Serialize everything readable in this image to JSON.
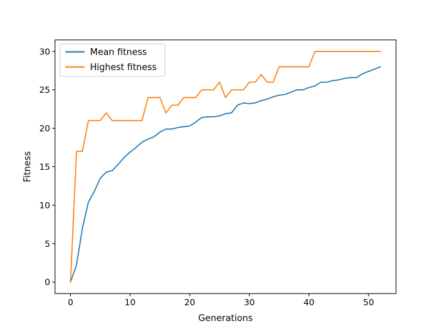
{
  "chart_data": {
    "type": "line",
    "title": "",
    "xlabel": "Generations",
    "ylabel": "Fitness",
    "xlim": [
      -2.6,
      54.6
    ],
    "ylim": [
      -1.5,
      31.5
    ],
    "xticks": [
      0,
      10,
      20,
      30,
      40,
      50
    ],
    "yticks": [
      0,
      5,
      10,
      15,
      20,
      25,
      30
    ],
    "grid": false,
    "legend": "top-left",
    "x": [
      0,
      1,
      2,
      3,
      4,
      5,
      6,
      7,
      8,
      9,
      10,
      11,
      12,
      13,
      14,
      15,
      16,
      17,
      18,
      19,
      20,
      21,
      22,
      23,
      24,
      25,
      26,
      27,
      28,
      29,
      30,
      31,
      32,
      33,
      34,
      35,
      36,
      37,
      38,
      39,
      40,
      41,
      42,
      43,
      44,
      45,
      46,
      47,
      48,
      49,
      50,
      51,
      52
    ],
    "series": [
      {
        "name": "Mean fitness",
        "color": "#1f77b4",
        "values": [
          0.0,
          2.2,
          7.0,
          10.4,
          11.8,
          13.5,
          14.3,
          14.5,
          15.3,
          16.2,
          16.9,
          17.5,
          18.2,
          18.6,
          18.9,
          19.5,
          19.9,
          19.9,
          20.1,
          20.2,
          20.3,
          20.8,
          21.4,
          21.5,
          21.5,
          21.6,
          21.9,
          22.0,
          23.0,
          23.3,
          23.2,
          23.3,
          23.6,
          23.8,
          24.1,
          24.3,
          24.4,
          24.7,
          25.0,
          25.0,
          25.3,
          25.5,
          26.0,
          26.0,
          26.2,
          26.3,
          26.5,
          26.6,
          26.6,
          27.1,
          27.4,
          27.7,
          28.0
        ]
      },
      {
        "name": "Highest fitness",
        "color": "#ff7f0e",
        "values": [
          0,
          17,
          17,
          21,
          21,
          21,
          22,
          21,
          21,
          21,
          21,
          21,
          21,
          24,
          24,
          24,
          22,
          23,
          23,
          24,
          24,
          24,
          25,
          25,
          25,
          26,
          24,
          25,
          25,
          25,
          26,
          26,
          27,
          26,
          26,
          28,
          28,
          28,
          28,
          28,
          28,
          30,
          30,
          30,
          30,
          30,
          30,
          30,
          30,
          30,
          30,
          30,
          30
        ]
      }
    ]
  }
}
